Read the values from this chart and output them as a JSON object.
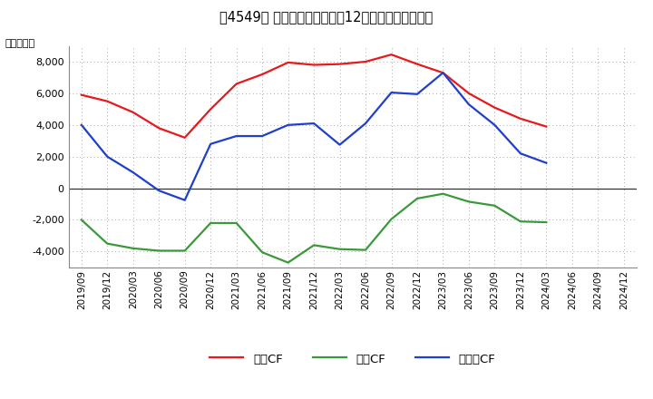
{
  "title": "［4549］ キャッシュフローの12か月移動合計の推移",
  "ylabel": "（百万円）",
  "x_labels": [
    "2019/09",
    "2019/12",
    "2020/03",
    "2020/06",
    "2020/09",
    "2020/12",
    "2021/03",
    "2021/06",
    "2021/09",
    "2021/12",
    "2022/03",
    "2022/06",
    "2022/09",
    "2022/12",
    "2023/03",
    "2023/06",
    "2023/09",
    "2023/12",
    "2024/03",
    "2024/06",
    "2024/09",
    "2024/12"
  ],
  "eigyo_cf": [
    5900,
    5500,
    4800,
    3800,
    3200,
    5000,
    6600,
    7200,
    7950,
    7800,
    7850,
    8000,
    8450,
    7850,
    7300,
    6000,
    5100,
    4400,
    3900,
    null,
    null,
    null
  ],
  "toshi_cf": [
    -2000,
    -3500,
    -3800,
    -3950,
    -3950,
    -2200,
    -2200,
    -4050,
    -4700,
    -3600,
    -3850,
    -3900,
    -1950,
    -650,
    -350,
    -850,
    -1100,
    -2100,
    -2150,
    null,
    null,
    null
  ],
  "free_cf": [
    4000,
    2000,
    1000,
    -150,
    -750,
    2800,
    3300,
    3300,
    4000,
    4100,
    2750,
    4100,
    6050,
    5950,
    7300,
    5300,
    4000,
    2200,
    1600,
    null,
    null,
    null
  ],
  "eigyo_color": "#e8191c",
  "toshi_color": "#3a9a3a",
  "free_color": "#1f3fcc",
  "ylim": [
    -5000,
    9000
  ],
  "yticks": [
    -4000,
    -2000,
    0,
    2000,
    4000,
    6000,
    8000
  ],
  "background_color": "#ffffff",
  "grid_color": "#aaaaaa",
  "legend_labels": [
    "営業CF",
    "投資CF",
    "フリーCF"
  ]
}
